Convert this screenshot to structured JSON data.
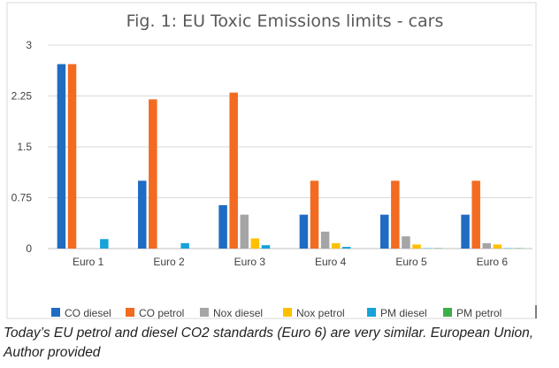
{
  "chart_data": {
    "type": "bar",
    "title": "Fig. 1: EU Toxic Emissions limits - cars",
    "xlabel": "",
    "ylabel": "",
    "ylim": [
      0,
      3
    ],
    "yticks": [
      "0",
      "0.75",
      "1.5",
      "2.25",
      "3"
    ],
    "ytick_values": [
      0,
      0.75,
      1.5,
      2.25,
      3
    ],
    "grid": true,
    "legend_position": "bottom",
    "categories": [
      "Euro 1",
      "Euro 2",
      "Euro 3",
      "Euro 4",
      "Euro 5",
      "Euro 6"
    ],
    "series": [
      {
        "name": "CO diesel",
        "color": "#1f6cc2",
        "values": [
          2.72,
          1.0,
          0.64,
          0.5,
          0.5,
          0.5
        ]
      },
      {
        "name": "CO petrol",
        "color": "#f26b21",
        "values": [
          2.72,
          2.2,
          2.3,
          1.0,
          1.0,
          1.0
        ]
      },
      {
        "name": "Nox diesel",
        "color": "#a5a5a5",
        "values": [
          0,
          0,
          0.5,
          0.25,
          0.18,
          0.08
        ]
      },
      {
        "name": "Nox petrol",
        "color": "#ffc000",
        "values": [
          0,
          0,
          0.15,
          0.08,
          0.06,
          0.06
        ]
      },
      {
        "name": "PM diesel",
        "color": "#17a2d8",
        "values": [
          0.14,
          0.08,
          0.05,
          0.025,
          0.005,
          0.005
        ]
      },
      {
        "name": "PM petrol",
        "color": "#3fae49",
        "values": [
          0,
          0,
          0,
          0,
          0.005,
          0.005
        ]
      }
    ]
  },
  "caption": "Today’s EU petrol and diesel CO2 standards (Euro 6) are very similar. European Union, Author provided"
}
